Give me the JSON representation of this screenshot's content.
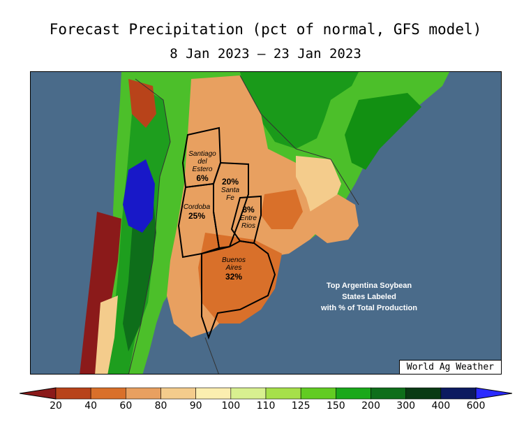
{
  "title": "Forecast Precipitation (pct of normal, GFS model)",
  "subtitle": "8 Jan 2023 – 23 Jan 2023",
  "colors": {
    "ocean": "#4a6b8a",
    "border": "#000000"
  },
  "states": [
    {
      "name": "Santiago del Estero",
      "lines": [
        "Santiago",
        "del",
        "Estero"
      ],
      "pct": "6%"
    },
    {
      "name": "Santa Fe",
      "lines": [
        "Santa",
        "Fe"
      ],
      "pct": "20%"
    },
    {
      "name": "Cordoba",
      "lines": [
        "Cordoba"
      ],
      "pct": "25%"
    },
    {
      "name": "Entre Rios",
      "lines": [
        "Entre",
        "Rios"
      ],
      "pct": "8%"
    },
    {
      "name": "Buenos Aires",
      "lines": [
        "Buenos",
        "Aires"
      ],
      "pct": "32%"
    }
  ],
  "note": [
    "Top Argentina Soybean",
    "States Labeled",
    "with % of Total Production"
  ],
  "credit": "World Ag Weather",
  "legend": {
    "ticks": [
      "20",
      "40",
      "60",
      "80",
      "90",
      "100",
      "110",
      "125",
      "150",
      "200",
      "300",
      "400",
      "600"
    ],
    "colors": [
      "#8b1a1a",
      "#b8431a",
      "#d9702a",
      "#e8a060",
      "#f4cc8c",
      "#fbeeb0",
      "#d8f090",
      "#a6e04a",
      "#62cc22",
      "#1aa81a",
      "#0e6e1a",
      "#0a3a14",
      "#0c1a60",
      "#1818c8",
      "#2a2aff"
    ]
  }
}
